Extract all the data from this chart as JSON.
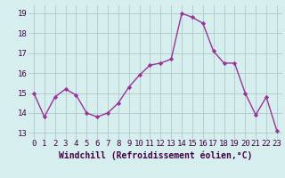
{
  "x": [
    0,
    1,
    2,
    3,
    4,
    5,
    6,
    7,
    8,
    9,
    10,
    11,
    12,
    13,
    14,
    15,
    16,
    17,
    18,
    19,
    20,
    21,
    22,
    23
  ],
  "y": [
    15.0,
    13.8,
    14.8,
    15.2,
    14.9,
    14.0,
    13.8,
    14.0,
    14.5,
    15.3,
    15.9,
    16.4,
    16.5,
    16.7,
    19.0,
    18.8,
    18.5,
    17.1,
    16.5,
    16.5,
    15.0,
    13.9,
    14.8,
    13.1
  ],
  "line_color": "#993399",
  "marker": "D",
  "marker_size": 2.2,
  "linewidth": 1.0,
  "bg_color": "#d6eeee",
  "grid_color": "#b0c8c8",
  "xlabel": "Windchill (Refroidissement éolien,°C)",
  "xlabel_fontsize": 7.0,
  "tick_fontsize": 6.5,
  "ylim": [
    12.7,
    19.4
  ],
  "yticks": [
    13,
    14,
    15,
    16,
    17,
    18,
    19
  ],
  "xlim": [
    -0.5,
    23.5
  ],
  "xticks": [
    0,
    1,
    2,
    3,
    4,
    5,
    6,
    7,
    8,
    9,
    10,
    11,
    12,
    13,
    14,
    15,
    16,
    17,
    18,
    19,
    20,
    21,
    22,
    23
  ]
}
